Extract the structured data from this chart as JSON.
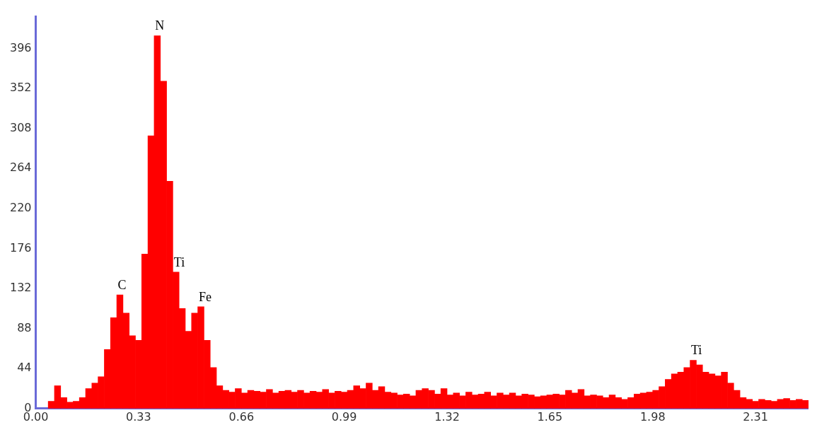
{
  "chart_data": {
    "type": "histogram",
    "color": "#ff0000",
    "bins": [
      0.04,
      0.06,
      0.08,
      0.1,
      0.12,
      0.14,
      0.16,
      0.18,
      0.2,
      0.22,
      0.24,
      0.26,
      0.28,
      0.3,
      0.32,
      0.34,
      0.36,
      0.38,
      0.4,
      0.42,
      0.44,
      0.46,
      0.48,
      0.5,
      0.52,
      0.54,
      0.56,
      0.58,
      0.6,
      0.62,
      0.64,
      0.66,
      0.68,
      0.7,
      0.72,
      0.74,
      0.76,
      0.78,
      0.8,
      0.82,
      0.84,
      0.86,
      0.88,
      0.9,
      0.92,
      0.94,
      0.96,
      0.98,
      1.0,
      1.02,
      1.04,
      1.06,
      1.08,
      1.1,
      1.12,
      1.14,
      1.16,
      1.18,
      1.2,
      1.22,
      1.24,
      1.26,
      1.28,
      1.3,
      1.32,
      1.34,
      1.36,
      1.38,
      1.4,
      1.42,
      1.44,
      1.46,
      1.48,
      1.5,
      1.52,
      1.54,
      1.56,
      1.58,
      1.6,
      1.62,
      1.64,
      1.66,
      1.68,
      1.7,
      1.72,
      1.74,
      1.76,
      1.78,
      1.8,
      1.82,
      1.84,
      1.86,
      1.88,
      1.9,
      1.92,
      1.94,
      1.96,
      1.98,
      2.0,
      2.02,
      2.04,
      2.06,
      2.08,
      2.1,
      2.12,
      2.14,
      2.16,
      2.18,
      2.2,
      2.22,
      2.24,
      2.26,
      2.28,
      2.3,
      2.32,
      2.34,
      2.36,
      2.38,
      2.4,
      2.42,
      2.44,
      2.46,
      2.48
    ],
    "values": [
      8,
      25,
      12,
      7,
      8,
      12,
      22,
      28,
      35,
      65,
      100,
      125,
      105,
      80,
      75,
      170,
      300,
      410,
      360,
      250,
      150,
      110,
      85,
      105,
      112,
      75,
      45,
      25,
      20,
      18,
      22,
      17,
      20,
      19,
      18,
      21,
      17,
      19,
      20,
      18,
      20,
      17,
      19,
      18,
      21,
      17,
      19,
      18,
      20,
      25,
      22,
      28,
      20,
      24,
      18,
      17,
      15,
      16,
      14,
      20,
      22,
      20,
      16,
      22,
      15,
      17,
      14,
      18,
      15,
      16,
      18,
      14,
      17,
      15,
      17,
      14,
      16,
      15,
      13,
      14,
      15,
      16,
      15,
      20,
      17,
      21,
      14,
      15,
      14,
      12,
      15,
      12,
      10,
      12,
      16,
      17,
      18,
      20,
      24,
      32,
      38,
      40,
      45,
      53,
      48,
      40,
      38,
      36,
      40,
      28,
      20,
      12,
      10,
      8,
      10,
      9,
      8,
      10,
      11,
      9,
      10,
      9
    ],
    "xlim": [
      0,
      2.48
    ],
    "xticks": [
      {
        "value": 0,
        "label": "0.00"
      },
      0.33,
      0.66,
      0.99,
      1.32,
      1.65,
      1.98,
      2.31
    ],
    "ylim": [
      0,
      431
    ],
    "yticks": [
      0,
      44,
      88,
      132,
      176,
      220,
      264,
      308,
      352,
      396
    ],
    "grid": false,
    "legend": false,
    "annotations": [
      {
        "text": "N",
        "x": 0.39,
        "y": 410
      },
      {
        "text": "C",
        "x": 0.27,
        "y": 125
      },
      {
        "text": "Ti",
        "x": 0.45,
        "y": 150
      },
      {
        "text": "Fe",
        "x": 0.53,
        "y": 112
      },
      {
        "text": "Ti",
        "x": 2.11,
        "y": 53
      }
    ]
  }
}
